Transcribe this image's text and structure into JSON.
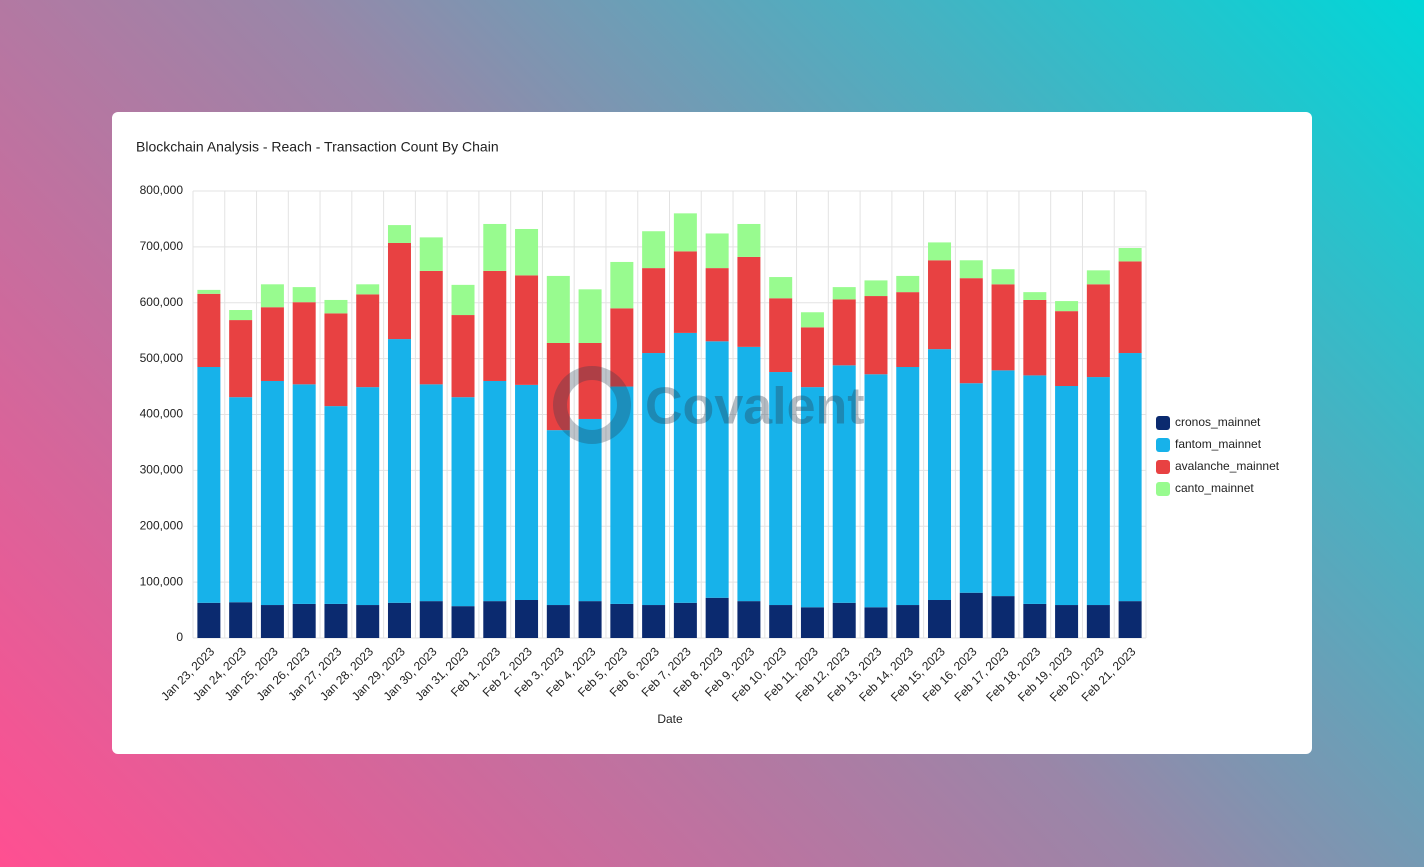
{
  "chart_data": {
    "type": "bar",
    "stacked": true,
    "title": "Blockchain Analysis - Reach - Transaction Count By Chain",
    "xlabel": "Date",
    "watermark": "Covalent",
    "categories": [
      "Jan 23, 2023",
      "Jan 24, 2023",
      "Jan 25, 2023",
      "Jan 26, 2023",
      "Jan 27, 2023",
      "Jan 28, 2023",
      "Jan 29, 2023",
      "Jan 30, 2023",
      "Jan 31, 2023",
      "Feb 1, 2023",
      "Feb 2, 2023",
      "Feb 3, 2023",
      "Feb 4, 2023",
      "Feb 5, 2023",
      "Feb 6, 2023",
      "Feb 7, 2023",
      "Feb 8, 2023",
      "Feb 9, 2023",
      "Feb 10, 2023",
      "Feb 11, 2023",
      "Feb 12, 2023",
      "Feb 13, 2023",
      "Feb 14, 2023",
      "Feb 15, 2023",
      "Feb 16, 2023",
      "Feb 17, 2023",
      "Feb 18, 2023",
      "Feb 19, 2023",
      "Feb 20, 2023",
      "Feb 21, 2023"
    ],
    "series": [
      {
        "name": "cronos_mainnet",
        "color": "#0b2a6f",
        "values": [
          63000,
          64000,
          59000,
          61000,
          61000,
          59000,
          63000,
          66000,
          57000,
          66000,
          68000,
          59000,
          66000,
          61000,
          59000,
          63000,
          72000,
          66000,
          59000,
          55000,
          63000,
          55000,
          59000,
          68000,
          81000,
          75000,
          61000,
          59000,
          59000,
          66000
        ]
      },
      {
        "name": "fantom_mainnet",
        "color": "#17b2ea",
        "values": [
          422000,
          367000,
          401000,
          393000,
          354000,
          390000,
          472000,
          388000,
          374000,
          394000,
          385000,
          313000,
          326000,
          389000,
          451000,
          483000,
          459000,
          455000,
          417000,
          394000,
          425000,
          417000,
          426000,
          449000,
          375000,
          404000,
          409000,
          392000,
          408000,
          444000
        ]
      },
      {
        "name": "avalanche_mainnet",
        "color": "#e84142",
        "values": [
          131000,
          138000,
          132000,
          147000,
          166000,
          166000,
          172000,
          203000,
          147000,
          197000,
          196000,
          156000,
          136000,
          140000,
          152000,
          146000,
          131000,
          161000,
          132000,
          107000,
          118000,
          140000,
          134000,
          159000,
          188000,
          154000,
          135000,
          134000,
          166000,
          164000
        ]
      },
      {
        "name": "canto_mainnet",
        "color": "#98fb8f",
        "values": [
          7000,
          18000,
          41000,
          27000,
          24000,
          18000,
          32000,
          60000,
          54000,
          84000,
          83000,
          120000,
          96000,
          83000,
          66000,
          68000,
          62000,
          59000,
          38000,
          27000,
          22000,
          28000,
          29000,
          32000,
          32000,
          27000,
          14000,
          18000,
          25000,
          24000
        ]
      }
    ],
    "ylim": [
      0,
      800000
    ],
    "yticks": [
      0,
      {
        "value": 100000,
        "label": "100,000"
      },
      {
        "value": 200000,
        "label": "200,000"
      },
      {
        "value": 300000,
        "label": "300,000"
      },
      {
        "value": 400000,
        "label": "400,000"
      },
      {
        "value": 500000,
        "label": "500,000"
      },
      {
        "value": 600000,
        "label": "600,000"
      },
      {
        "value": 700000,
        "label": "700,000"
      },
      {
        "value": 800000,
        "label": "800,000"
      }
    ],
    "grid": true,
    "legend": "right"
  }
}
